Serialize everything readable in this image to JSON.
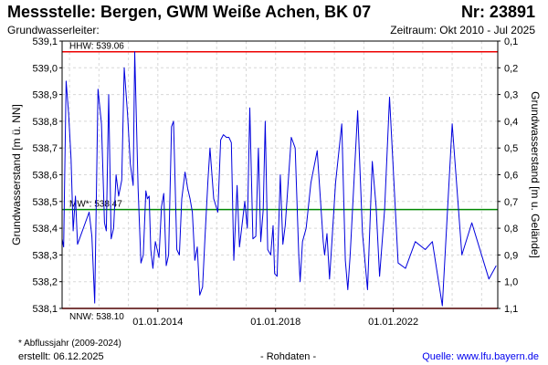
{
  "header": {
    "title": "Messstelle: Bergen, GWM Weiße Achen, BK 07",
    "nr": "Nr: 23891",
    "aquifer": "Grundwasserleiter:",
    "period": "Zeitraum: Okt 2010 - Jul 2025"
  },
  "footer": {
    "footnote": "* Abflussjahr (2009-2024)",
    "created": "erstellt:  06.12.2025",
    "data_type": "- Rohdaten -",
    "source": "Quelle:  www.lfu.bayern.de"
  },
  "colors": {
    "series": "#0000dd",
    "hhw": "#ee0000",
    "nnw": "#ee0000",
    "mw": "#008800",
    "grid": "#d8d8d8"
  },
  "chart_data": {
    "type": "line",
    "title": "",
    "xlabel": "",
    "ylabel": "Grundwasserstand [m ü. NN]",
    "y2label": "Grundwasserstand [m u. Gelände]",
    "ylim": [
      538.1,
      539.1
    ],
    "y2lim": [
      1.1,
      0.1
    ],
    "grid": true,
    "x_range": [
      "2010-10",
      "2025-07"
    ],
    "x_ticks": [
      {
        "date": "2014-01-01",
        "label": "01.01.2014"
      },
      {
        "date": "2018-01-01",
        "label": "01.01.2018"
      },
      {
        "date": "2022-01-01",
        "label": "01.01.2022"
      }
    ],
    "y_ticks": [
      "538,1",
      "538,2",
      "538,3",
      "538,4",
      "538,5",
      "538,6",
      "538,7",
      "538,8",
      "538,9",
      "539,0",
      "539,1"
    ],
    "y2_ticks": [
      "1,1",
      "1,0",
      "0,9",
      "0,8",
      "0,7",
      "0,6",
      "0,5",
      "0,4",
      "0,3",
      "0,2",
      "0,1"
    ],
    "reference_lines": [
      {
        "name": "HHW",
        "label": "HHW: 539.06",
        "value": 539.06,
        "label_pos": "above"
      },
      {
        "name": "MW",
        "label": "MW*: 538.47",
        "value": 538.47,
        "label_pos": "above"
      },
      {
        "name": "NNW",
        "label": "NNW: 538.10",
        "value": 538.1,
        "label_pos": "below"
      }
    ],
    "series": [
      {
        "name": "",
        "points": [
          [
            "2010-10-01",
            538.36
          ],
          [
            "2010-10-20",
            538.33
          ],
          [
            "2010-11-20",
            538.95
          ],
          [
            "2010-12-20",
            538.83
          ],
          [
            "2011-01-20",
            538.66
          ],
          [
            "2011-02-15",
            538.39
          ],
          [
            "2011-03-15",
            538.52
          ],
          [
            "2011-04-10",
            538.34
          ],
          [
            "2011-09-01",
            538.46
          ],
          [
            "2011-10-05",
            538.37
          ],
          [
            "2011-11-10",
            538.12
          ],
          [
            "2011-12-20",
            538.92
          ],
          [
            "2012-02-01",
            538.79
          ],
          [
            "2012-03-10",
            538.42
          ],
          [
            "2012-04-01",
            538.39
          ],
          [
            "2012-05-01",
            538.9
          ],
          [
            "2012-06-01",
            538.36
          ],
          [
            "2012-07-01",
            538.4
          ],
          [
            "2012-08-01",
            538.6
          ],
          [
            "2012-09-01",
            538.52
          ],
          [
            "2012-10-10",
            538.58
          ],
          [
            "2012-11-10",
            539.0
          ],
          [
            "2012-12-20",
            538.83
          ],
          [
            "2013-01-25",
            538.64
          ],
          [
            "2013-03-01",
            538.56
          ],
          [
            "2013-03-20",
            539.06
          ],
          [
            "2013-05-01",
            538.55
          ],
          [
            "2013-06-05",
            538.27
          ],
          [
            "2013-07-05",
            538.3
          ],
          [
            "2013-08-05",
            538.54
          ],
          [
            "2013-08-25",
            538.51
          ],
          [
            "2013-09-15",
            538.52
          ],
          [
            "2013-10-05",
            538.32
          ],
          [
            "2013-11-01",
            538.25
          ],
          [
            "2013-12-01",
            538.35
          ],
          [
            "2014-01-15",
            538.29
          ],
          [
            "2014-02-15",
            538.48
          ],
          [
            "2014-03-15",
            538.53
          ],
          [
            "2014-04-15",
            538.26
          ],
          [
            "2014-05-15",
            538.3
          ],
          [
            "2014-06-20",
            538.78
          ],
          [
            "2014-07-15",
            538.8
          ],
          [
            "2014-08-25",
            538.32
          ],
          [
            "2014-09-25",
            538.3
          ],
          [
            "2014-10-25",
            538.51
          ],
          [
            "2014-12-05",
            538.61
          ],
          [
            "2015-01-05",
            538.55
          ],
          [
            "2015-02-05",
            538.51
          ],
          [
            "2015-03-05",
            538.46
          ],
          [
            "2015-04-05",
            538.28
          ],
          [
            "2015-05-05",
            538.33
          ],
          [
            "2015-06-05",
            538.15
          ],
          [
            "2015-07-10",
            538.18
          ],
          [
            "2015-08-10",
            538.37
          ],
          [
            "2015-09-15",
            538.58
          ],
          [
            "2015-10-10",
            538.7
          ],
          [
            "2015-11-25",
            538.51
          ],
          [
            "2016-01-15",
            538.46
          ],
          [
            "2016-02-20",
            538.73
          ],
          [
            "2016-03-25",
            538.75
          ],
          [
            "2016-05-01",
            538.74
          ],
          [
            "2016-06-01",
            538.74
          ],
          [
            "2016-07-01",
            538.72
          ],
          [
            "2016-08-01",
            538.28
          ],
          [
            "2016-09-10",
            538.56
          ],
          [
            "2016-10-10",
            538.33
          ],
          [
            "2016-12-15",
            538.5
          ],
          [
            "2017-01-15",
            538.4
          ],
          [
            "2017-02-15",
            538.85
          ],
          [
            "2017-03-25",
            538.36
          ],
          [
            "2017-05-01",
            538.37
          ],
          [
            "2017-06-01",
            538.7
          ],
          [
            "2017-07-01",
            538.35
          ],
          [
            "2017-08-01",
            538.47
          ],
          [
            "2017-08-25",
            538.8
          ],
          [
            "2017-09-25",
            538.32
          ],
          [
            "2017-11-01",
            538.3
          ],
          [
            "2017-12-01",
            538.41
          ],
          [
            "2017-12-20",
            538.23
          ],
          [
            "2018-01-20",
            538.22
          ],
          [
            "2018-03-01",
            538.6
          ],
          [
            "2018-04-01",
            538.34
          ],
          [
            "2018-05-01",
            538.41
          ],
          [
            "2018-07-15",
            538.74
          ],
          [
            "2018-09-01",
            538.7
          ],
          [
            "2018-10-15",
            538.3
          ],
          [
            "2018-11-01",
            538.2
          ],
          [
            "2018-12-01",
            538.35
          ],
          [
            "2019-01-15",
            538.4
          ],
          [
            "2019-03-15",
            538.57
          ],
          [
            "2019-06-01",
            538.69
          ],
          [
            "2019-08-15",
            538.35
          ],
          [
            "2019-09-01",
            538.3
          ],
          [
            "2019-10-01",
            538.38
          ],
          [
            "2019-11-01",
            538.21
          ],
          [
            "2019-12-01",
            538.35
          ],
          [
            "2020-01-15",
            538.57
          ],
          [
            "2020-04-01",
            538.79
          ],
          [
            "2020-05-15",
            538.28
          ],
          [
            "2020-06-15",
            538.17
          ],
          [
            "2020-07-15",
            538.3
          ],
          [
            "2020-10-15",
            538.84
          ],
          [
            "2020-12-15",
            538.38
          ],
          [
            "2021-02-15",
            538.17
          ],
          [
            "2021-04-15",
            538.65
          ],
          [
            "2021-06-01",
            538.48
          ],
          [
            "2021-07-15",
            538.22
          ],
          [
            "2021-09-15",
            538.47
          ],
          [
            "2021-11-15",
            538.89
          ],
          [
            "2022-03-01",
            538.27
          ],
          [
            "2022-06-01",
            538.25
          ],
          [
            "2022-10-01",
            538.35
          ],
          [
            "2023-02-01",
            538.32
          ],
          [
            "2023-05-01",
            538.35
          ],
          [
            "2023-09-01",
            538.11
          ],
          [
            "2024-01-01",
            538.79
          ],
          [
            "2024-05-01",
            538.3
          ],
          [
            "2024-09-01",
            538.42
          ],
          [
            "2025-04-01",
            538.21
          ],
          [
            "2025-07-01",
            538.26
          ]
        ]
      }
    ]
  }
}
